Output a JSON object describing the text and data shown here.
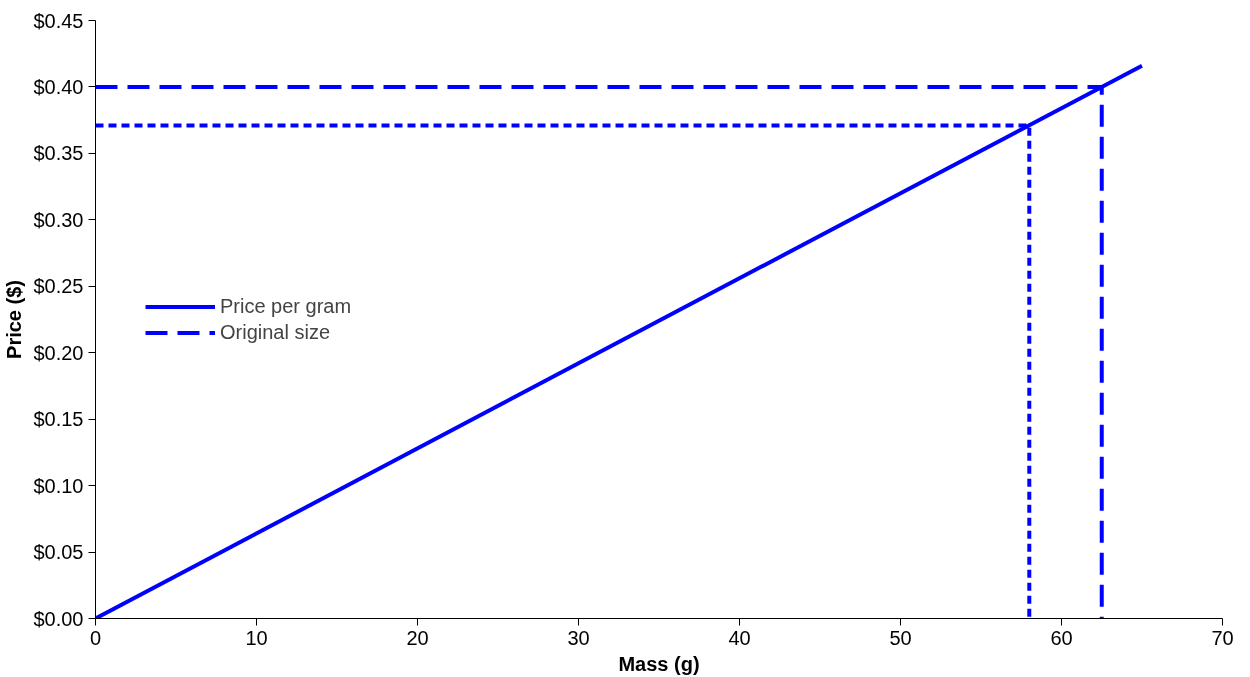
{
  "chart_data": {
    "type": "line",
    "xlabel": "Mass (g)",
    "ylabel": "Price ($)",
    "xlim": [
      0,
      70
    ],
    "xticks": [
      0,
      10,
      20,
      30,
      40,
      50,
      60,
      70
    ],
    "ylim": [
      0,
      0.45
    ],
    "yticks": [
      {
        "value": 0,
        "label": "$0.00"
      },
      {
        "value": 0.05,
        "label": "$0.05"
      },
      {
        "value": 0.1,
        "label": "$0.10"
      },
      {
        "value": 0.15,
        "label": "$0.15"
      },
      {
        "value": 0.2,
        "label": "$0.20"
      },
      {
        "value": 0.25,
        "label": "$0.25"
      },
      {
        "value": 0.3,
        "label": "$0.30"
      },
      {
        "value": 0.35,
        "label": "$0.35"
      },
      {
        "value": 0.4,
        "label": "$0.40"
      },
      {
        "value": 0.45,
        "label": "$0.45"
      }
    ],
    "grid": false,
    "legend": "left",
    "marker": "none",
    "series": [
      {
        "name": "Price per gram",
        "color": "#0000ff",
        "line_style": "solid",
        "x": [
          0,
          65
        ],
        "values": [
          0,
          0.416
        ]
      },
      {
        "name": "Original size",
        "color": "#0000ff",
        "line_style": "dashed",
        "x": [
          0,
          62.5,
          62.5
        ],
        "values": [
          0.4,
          0.4,
          0
        ]
      },
      {
        "color": "#0000ff",
        "line_style": "dotted",
        "x": [
          0,
          58,
          58
        ],
        "values": [
          0.371,
          0.371,
          0
        ]
      }
    ]
  }
}
